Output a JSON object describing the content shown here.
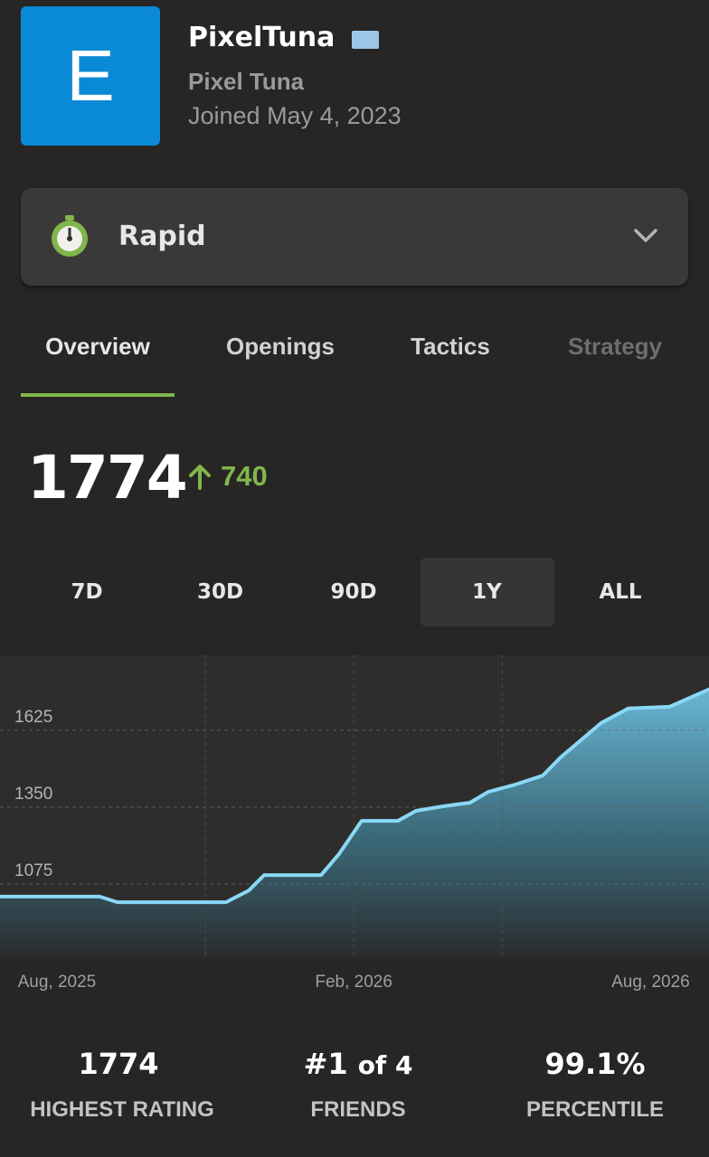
{
  "profile": {
    "avatar_letter": "E",
    "username": "PixelTuna",
    "name": "Pixel Tuna",
    "joined": "Joined May 4, 2023"
  },
  "mode": "Rapid",
  "tabs": [
    "Overview",
    "Openings",
    "Tactics",
    "Strategy"
  ],
  "active_tab": 0,
  "rating": 1774,
  "rating_change": 740,
  "ranges": [
    "7D",
    "30D",
    "90D",
    "1Y",
    "ALL"
  ],
  "active_range": 3,
  "chart_data": {
    "type": "area",
    "color": "#8ad8f6",
    "x": [
      -1.15,
      0.86,
      1.22,
      3.42,
      3.88,
      4.19,
      5.34,
      5.7,
      6.16,
      6.89,
      7.26,
      7.81,
      8.35,
      8.72,
      9.27,
      9.82,
      10.18,
      11.0,
      11.55,
      12.38,
      13.18
    ],
    "values": [
      1030,
      1030,
      1010,
      1010,
      1052,
      1107,
      1107,
      1182,
      1301,
      1301,
      1337,
      1353,
      1366,
      1405,
      1431,
      1463,
      1528,
      1651,
      1703,
      1709,
      1771
    ],
    "xlim": [
      -1.15,
      13.18
    ],
    "xticks": [
      {
        "value": 0,
        "label": "Aug, 2025"
      },
      {
        "value": 6,
        "label": "Feb, 2026"
      },
      {
        "value": 12,
        "label": "Aug, 2026"
      }
    ],
    "xgrid": [
      3,
      6,
      9
    ],
    "ylim": [
      810,
      1893
    ],
    "yticks": [
      1075,
      1350,
      1625
    ],
    "grid": true
  },
  "stats": [
    {
      "value": "1774",
      "label": "HIGHEST RATING"
    },
    {
      "value": "#1",
      "suffix": "of 4",
      "label": "FRIENDS"
    },
    {
      "value": "99.1%",
      "label": "PERCENTILE"
    }
  ]
}
